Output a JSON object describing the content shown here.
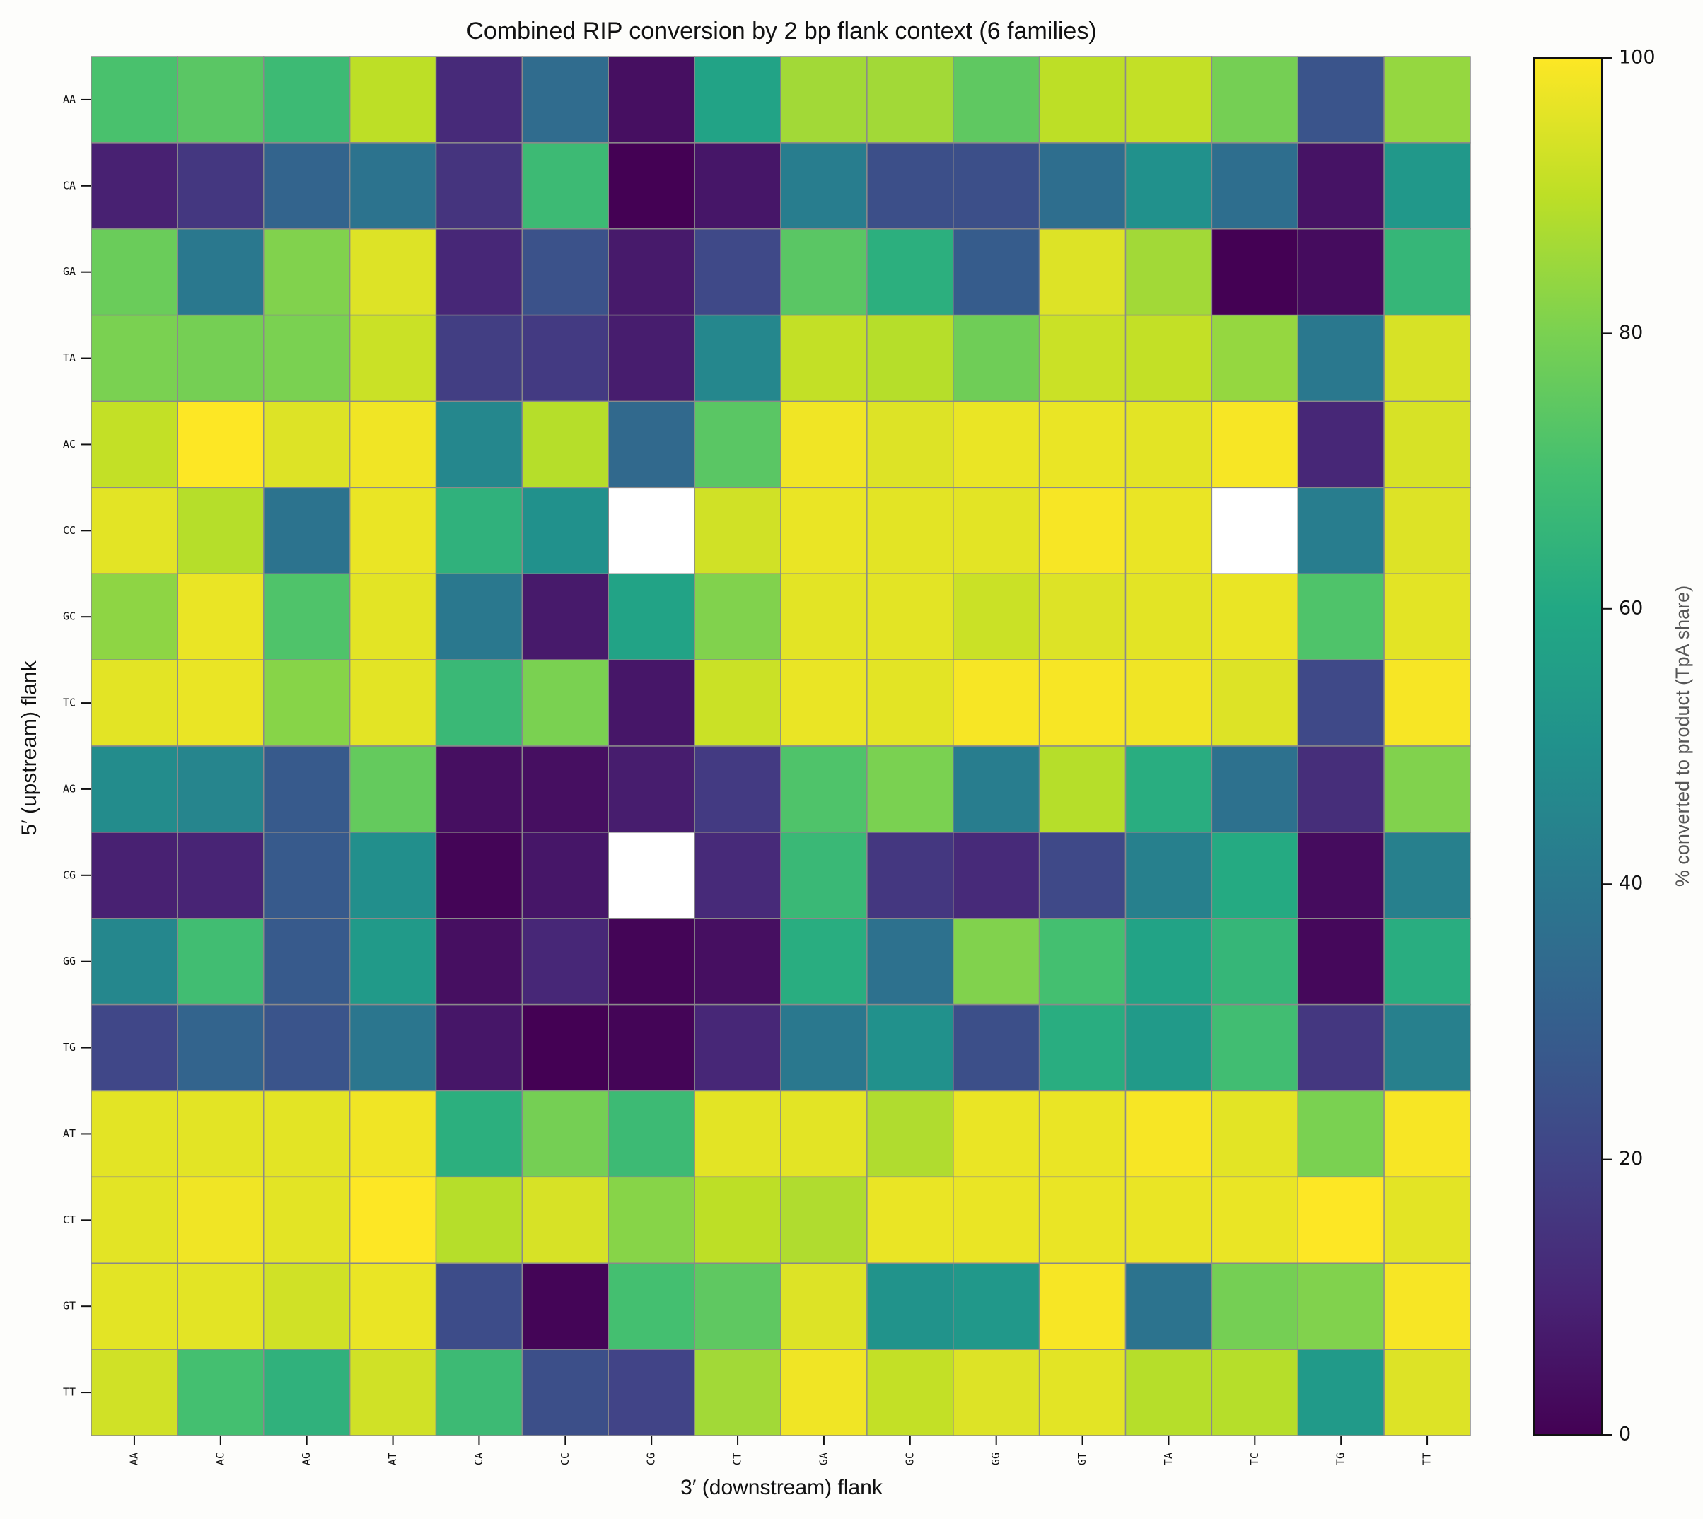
{
  "chart_data": {
    "type": "heatmap",
    "title": "Combined RIP conversion by 2 bp flank context (6 families)",
    "xlabel": "3′ (downstream) flank",
    "ylabel": "5′ (upstream) flank",
    "colorbar_label": "% converted to product (TpA share)",
    "colormap": "viridis",
    "missing_color": "#ffffff",
    "vmin": 0,
    "vmax": 100,
    "colorbar_ticks": [
      0,
      20,
      40,
      60,
      80,
      100
    ],
    "x_categories": [
      "AA",
      "AC",
      "AG",
      "AT",
      "CA",
      "CC",
      "CG",
      "CT",
      "GA",
      "GC",
      "GG",
      "GT",
      "TA",
      "TC",
      "TG",
      "TT"
    ],
    "y_categories": [
      "AA",
      "CA",
      "GA",
      "TA",
      "AC",
      "CC",
      "GC",
      "TC",
      "AG",
      "CG",
      "GG",
      "TG",
      "AT",
      "CT",
      "GT",
      "TT"
    ],
    "values": [
      [
        71,
        74,
        68,
        90,
        12,
        35,
        4,
        58,
        86,
        86,
        75,
        90,
        91,
        79,
        26,
        84
      ],
      [
        9,
        16,
        32,
        38,
        15,
        68,
        0,
        6,
        42,
        24,
        24,
        36,
        50,
        36,
        5,
        53
      ],
      [
        77,
        40,
        81,
        95,
        11,
        25,
        7,
        22,
        74,
        63,
        29,
        95,
        86,
        0,
        3,
        66
      ],
      [
        80,
        79,
        80,
        92,
        18,
        17,
        8,
        46,
        91,
        89,
        78,
        92,
        91,
        84,
        40,
        94
      ],
      [
        91,
        100,
        95,
        98,
        46,
        89,
        34,
        74,
        98,
        95,
        97,
        97,
        96,
        99,
        11,
        94
      ],
      [
        96,
        89,
        38,
        97,
        64,
        50,
        null,
        93,
        97,
        96,
        96,
        99,
        97,
        null,
        42,
        95
      ],
      [
        83,
        97,
        72,
        96,
        40,
        7,
        58,
        81,
        96,
        96,
        92,
        95,
        96,
        97,
        72,
        96
      ],
      [
        96,
        97,
        82,
        96,
        67,
        80,
        6,
        92,
        97,
        96,
        99,
        99,
        98,
        95,
        22,
        99
      ],
      [
        48,
        45,
        28,
        76,
        4,
        4,
        8,
        17,
        72,
        80,
        42,
        89,
        62,
        37,
        13,
        81
      ],
      [
        9,
        10,
        28,
        49,
        1,
        6,
        null,
        12,
        67,
        16,
        12,
        22,
        43,
        61,
        3,
        43
      ],
      [
        46,
        69,
        28,
        54,
        4,
        11,
        1,
        4,
        62,
        37,
        81,
        70,
        58,
        66,
        2,
        62
      ],
      [
        21,
        32,
        26,
        39,
        6,
        0,
        1,
        11,
        40,
        50,
        24,
        62,
        54,
        69,
        16,
        43
      ],
      [
        96,
        96,
        96,
        98,
        63,
        79,
        68,
        96,
        96,
        88,
        97,
        97,
        99,
        96,
        80,
        99
      ],
      [
        96,
        98,
        96,
        100,
        89,
        94,
        82,
        90,
        88,
        97,
        97,
        97,
        97,
        97,
        100,
        96
      ],
      [
        96,
        96,
        93,
        97,
        23,
        1,
        70,
        75,
        95,
        51,
        53,
        99,
        38,
        79,
        81,
        99
      ],
      [
        93,
        70,
        64,
        93,
        68,
        24,
        20,
        86,
        98,
        91,
        95,
        96,
        89,
        89,
        54,
        95
      ]
    ]
  }
}
